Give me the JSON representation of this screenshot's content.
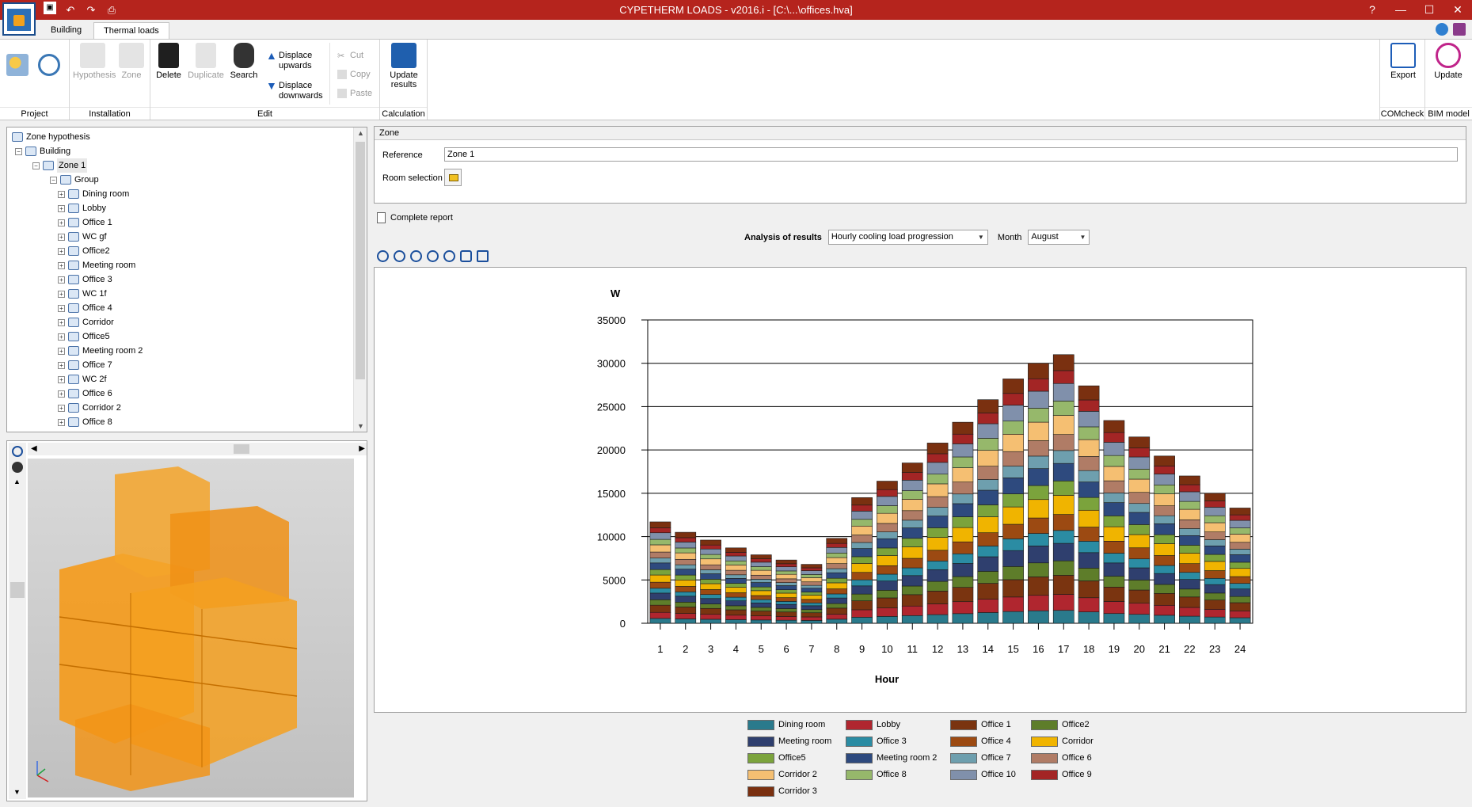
{
  "window": {
    "title": "CYPETHERM LOADS - v2016.i - [C:\\...\\offices.hva]",
    "controls": [
      "?",
      "—",
      "☐",
      "✕"
    ]
  },
  "ribbon_tabs": [
    "Building",
    "Thermal loads"
  ],
  "ribbon": {
    "groups": {
      "project": "Project",
      "installation": "Installation",
      "edit": "Edit",
      "calculation": "Calculation",
      "comcheck": "COMcheck",
      "bim": "BIM model"
    },
    "buttons": {
      "hypothesis": "Hypothesis",
      "zone": "Zone",
      "delete": "Delete",
      "duplicate": "Duplicate",
      "search": "Search",
      "displace_up": "Displace upwards",
      "displace_down": "Displace downwards",
      "cut": "Cut",
      "copy": "Copy",
      "paste": "Paste",
      "update_results": "Update results",
      "export": "Export",
      "update": "Update"
    }
  },
  "tree": {
    "root": "Zone hypothesis",
    "building": "Building",
    "zone": "Zone 1",
    "group": "Group",
    "rooms": [
      "Dining room",
      "Lobby",
      "Office 1",
      "WC gf",
      "Office2",
      "Meeting room",
      "Office 3",
      "WC 1f",
      "Office 4",
      "Corridor",
      "Office5",
      "Meeting room 2",
      "Office 7",
      "WC 2f",
      "Office 6",
      "Corridor 2",
      "Office 8"
    ]
  },
  "zone_panel": {
    "header": "Zone",
    "reference_label": "Reference",
    "reference_value": "Zone 1",
    "room_selection_label": "Room selection"
  },
  "complete_report": "Complete report",
  "analysis": {
    "label": "Analysis of results",
    "selected": "Hourly cooling load progression",
    "month_label": "Month",
    "month": "August"
  },
  "chart_data": {
    "type": "bar",
    "stacked": true,
    "ylabel": "W",
    "xlabel": "Hour",
    "ylim": [
      0,
      35000
    ],
    "yticks": [
      0,
      5000,
      10000,
      15000,
      20000,
      25000,
      30000,
      35000
    ],
    "grid": true,
    "legend_position": "bottom",
    "categories": [
      "1",
      "2",
      "3",
      "4",
      "5",
      "6",
      "7",
      "8",
      "9",
      "10",
      "11",
      "12",
      "13",
      "14",
      "15",
      "16",
      "17",
      "18",
      "19",
      "20",
      "21",
      "22",
      "23",
      "24"
    ],
    "totals": [
      11700,
      10500,
      9600,
      8700,
      7900,
      7300,
      6800,
      9800,
      14500,
      16400,
      18500,
      20800,
      23200,
      25800,
      28200,
      30000,
      31000,
      27400,
      23400,
      21500,
      19300,
      17000,
      15000,
      13300
    ],
    "series": [
      {
        "name": "Dining room",
        "color": "#2a7a8c"
      },
      {
        "name": "Lobby",
        "color": "#b0262f"
      },
      {
        "name": "Office 1",
        "color": "#7a3410"
      },
      {
        "name": "Office2",
        "color": "#5e7d2a"
      },
      {
        "name": "Meeting room",
        "color": "#2f3f6e"
      },
      {
        "name": "Office 3",
        "color": "#2b8ca3"
      },
      {
        "name": "Office 4",
        "color": "#9c4a12"
      },
      {
        "name": "Corridor",
        "color": "#f0b400"
      },
      {
        "name": "Office5",
        "color": "#7ba33c"
      },
      {
        "name": "Meeting room 2",
        "color": "#2e4a7e"
      },
      {
        "name": "Office 7",
        "color": "#6e9fae"
      },
      {
        "name": "Office 6",
        "color": "#b07c66"
      },
      {
        "name": "Corridor 2",
        "color": "#f5bf72"
      },
      {
        "name": "Office 8",
        "color": "#96b86b"
      },
      {
        "name": "Office 10",
        "color": "#8090ab"
      },
      {
        "name": "Office 9",
        "color": "#a32525"
      },
      {
        "name": "Corridor 3",
        "color": "#7a3010"
      }
    ]
  }
}
